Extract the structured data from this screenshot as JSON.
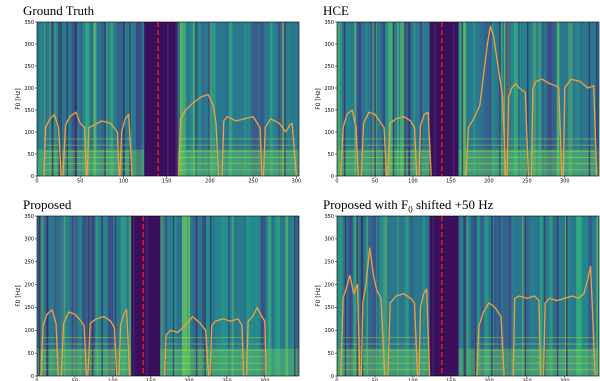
{
  "chart_data": [
    {
      "type": "heatmap",
      "title": "Ground Truth",
      "ylabel": "F0 [Hz]",
      "xlabel": "",
      "ylim": [
        0,
        350
      ],
      "xlim": [
        0,
        303
      ],
      "x_ticks": [
        0,
        50,
        100,
        150,
        200,
        250,
        300
      ],
      "y_ticks": [
        0,
        50,
        100,
        150,
        200,
        250,
        300,
        350
      ],
      "marker_x": 140,
      "series": [
        {
          "color": "#f5a040",
          "x": [
            8,
            10,
            15,
            20,
            25,
            28
          ],
          "y": [
            0,
            110,
            130,
            140,
            110,
            0
          ]
        },
        {
          "color": "#f5a040",
          "x": [
            30,
            33,
            38,
            45,
            50,
            55,
            57
          ],
          "y": [
            0,
            115,
            135,
            145,
            120,
            110,
            0
          ]
        },
        {
          "color": "#f5a040",
          "x": [
            58,
            60,
            65,
            75,
            85,
            93,
            95
          ],
          "y": [
            0,
            110,
            115,
            125,
            120,
            100,
            0
          ]
        },
        {
          "color": "#f5a040",
          "x": [
            96,
            98,
            102,
            106,
            110
          ],
          "y": [
            0,
            100,
            130,
            140,
            0
          ]
        },
        {
          "color": "#f5a040",
          "x": [
            164,
            166,
            172,
            180,
            190,
            198,
            204,
            207,
            210
          ],
          "y": [
            0,
            130,
            150,
            165,
            180,
            185,
            160,
            120,
            0
          ]
        },
        {
          "color": "#f5a040",
          "x": [
            214,
            216,
            220,
            230,
            240,
            250,
            258,
            260
          ],
          "y": [
            0,
            125,
            135,
            125,
            130,
            135,
            110,
            0
          ]
        },
        {
          "color": "#f5a040",
          "x": [
            262,
            264,
            270,
            280,
            288,
            292,
            295,
            300
          ],
          "y": [
            0,
            110,
            130,
            120,
            100,
            115,
            120,
            0
          ]
        }
      ]
    },
    {
      "type": "heatmap",
      "title": "HCE",
      "ylabel": "F0 [Hz]",
      "xlabel": "",
      "ylim": [
        0,
        350
      ],
      "xlim": [
        0,
        345
      ],
      "x_ticks": [
        0,
        50,
        100,
        150,
        200,
        250,
        300
      ],
      "y_ticks": [
        0,
        50,
        100,
        150,
        200,
        250,
        300,
        350
      ],
      "marker_x": 138,
      "series": [
        {
          "color": "#f5a040",
          "x": [
            5,
            8,
            13,
            20,
            25,
            28
          ],
          "y": [
            0,
            110,
            140,
            150,
            110,
            0
          ]
        },
        {
          "color": "#f5a040",
          "x": [
            32,
            35,
            42,
            50,
            58,
            62,
            65
          ],
          "y": [
            0,
            120,
            145,
            140,
            120,
            110,
            0
          ]
        },
        {
          "color": "#f5a040",
          "x": [
            67,
            70,
            78,
            88,
            97,
            102,
            105
          ],
          "y": [
            0,
            120,
            130,
            135,
            125,
            110,
            0
          ]
        },
        {
          "color": "#f5a040",
          "x": [
            108,
            110,
            115,
            120,
            124
          ],
          "y": [
            0,
            115,
            140,
            145,
            0
          ]
        },
        {
          "color": "#f5a040",
          "x": [
            170,
            173,
            180,
            188,
            193,
            198,
            202,
            206,
            212,
            218,
            222
          ],
          "y": [
            0,
            110,
            130,
            160,
            230,
            300,
            340,
            320,
            250,
            180,
            0
          ]
        },
        {
          "color": "#f5a040",
          "x": [
            224,
            226,
            230,
            235,
            240,
            248,
            252
          ],
          "y": [
            0,
            180,
            200,
            210,
            200,
            190,
            0
          ]
        },
        {
          "color": "#f5a040",
          "x": [
            256,
            258,
            262,
            270,
            280,
            288,
            292,
            296
          ],
          "y": [
            0,
            200,
            215,
            220,
            210,
            205,
            200,
            0
          ]
        },
        {
          "color": "#f5a040",
          "x": [
            298,
            300,
            308,
            320,
            330,
            338,
            342
          ],
          "y": [
            0,
            200,
            220,
            215,
            200,
            205,
            0
          ]
        }
      ]
    },
    {
      "type": "heatmap",
      "title": "Proposed",
      "ylabel": "F0 [Hz]",
      "xlabel": "",
      "ylim": [
        0,
        350
      ],
      "xlim": [
        0,
        345
      ],
      "x_ticks": [
        0,
        50,
        100,
        150,
        200,
        250,
        300
      ],
      "y_ticks": [
        0,
        50,
        100,
        150,
        200,
        250,
        300,
        350
      ],
      "marker_x": 140,
      "series": [
        {
          "color": "#f5a040",
          "x": [
            5,
            8,
            13,
            20,
            25,
            28
          ],
          "y": [
            0,
            110,
            135,
            145,
            115,
            0
          ]
        },
        {
          "color": "#f5a040",
          "x": [
            32,
            35,
            42,
            50,
            58,
            62,
            65
          ],
          "y": [
            0,
            115,
            140,
            135,
            120,
            110,
            0
          ]
        },
        {
          "color": "#f5a040",
          "x": [
            67,
            70,
            78,
            88,
            97,
            102,
            105
          ],
          "y": [
            0,
            115,
            125,
            130,
            120,
            105,
            0
          ]
        },
        {
          "color": "#f5a040",
          "x": [
            108,
            110,
            114,
            118,
            122
          ],
          "y": [
            0,
            110,
            135,
            145,
            0
          ]
        },
        {
          "color": "#f5a040",
          "x": [
            168,
            170,
            176,
            185,
            195,
            205,
            215,
            222,
            226
          ],
          "y": [
            0,
            90,
            100,
            95,
            110,
            130,
            115,
            100,
            0
          ]
        },
        {
          "color": "#f5a040",
          "x": [
            228,
            230,
            235,
            245,
            255,
            265,
            270,
            272
          ],
          "y": [
            0,
            110,
            120,
            125,
            120,
            125,
            110,
            0
          ]
        },
        {
          "color": "#f5a040",
          "x": [
            276,
            278,
            284,
            290,
            296,
            300,
            302
          ],
          "y": [
            0,
            120,
            130,
            150,
            130,
            120,
            0
          ]
        }
      ]
    },
    {
      "type": "heatmap",
      "title": "Proposed with F0 shifted +50 Hz",
      "ylabel": "F0 [Hz]",
      "xlabel": "",
      "ylim": [
        0,
        350
      ],
      "xlim": [
        0,
        345
      ],
      "x_ticks": [
        0,
        50,
        100,
        150,
        200,
        250,
        300
      ],
      "y_ticks": [
        0,
        50,
        100,
        150,
        200,
        250,
        300,
        350
      ],
      "marker_x": 138,
      "series": [
        {
          "color": "#f5a040",
          "x": [
            5,
            8,
            12,
            17,
            22,
            27,
            30
          ],
          "y": [
            0,
            170,
            190,
            220,
            180,
            200,
            0
          ]
        },
        {
          "color": "#f5a040",
          "x": [
            32,
            34,
            38,
            43,
            48,
            52,
            58,
            63
          ],
          "y": [
            0,
            160,
            200,
            280,
            220,
            190,
            170,
            0
          ]
        },
        {
          "color": "#f5a040",
          "x": [
            67,
            70,
            78,
            88,
            97,
            102,
            106
          ],
          "y": [
            0,
            160,
            175,
            180,
            170,
            160,
            0
          ]
        },
        {
          "color": "#f5a040",
          "x": [
            108,
            110,
            114,
            118,
            122
          ],
          "y": [
            0,
            150,
            180,
            190,
            0
          ]
        },
        {
          "color": "#f5a040",
          "x": [
            184,
            187,
            193,
            200,
            208,
            216,
            220
          ],
          "y": [
            0,
            110,
            140,
            160,
            150,
            130,
            0
          ]
        },
        {
          "color": "#f5a040",
          "x": [
            232,
            234,
            240,
            250,
            260,
            266,
            268
          ],
          "y": [
            0,
            170,
            175,
            170,
            175,
            165,
            0
          ]
        },
        {
          "color": "#f5a040",
          "x": [
            272,
            274,
            280,
            290,
            300,
            310,
            318,
            325,
            330,
            334,
            340
          ],
          "y": [
            0,
            160,
            170,
            165,
            170,
            175,
            170,
            180,
            210,
            240,
            0
          ]
        }
      ]
    }
  ]
}
